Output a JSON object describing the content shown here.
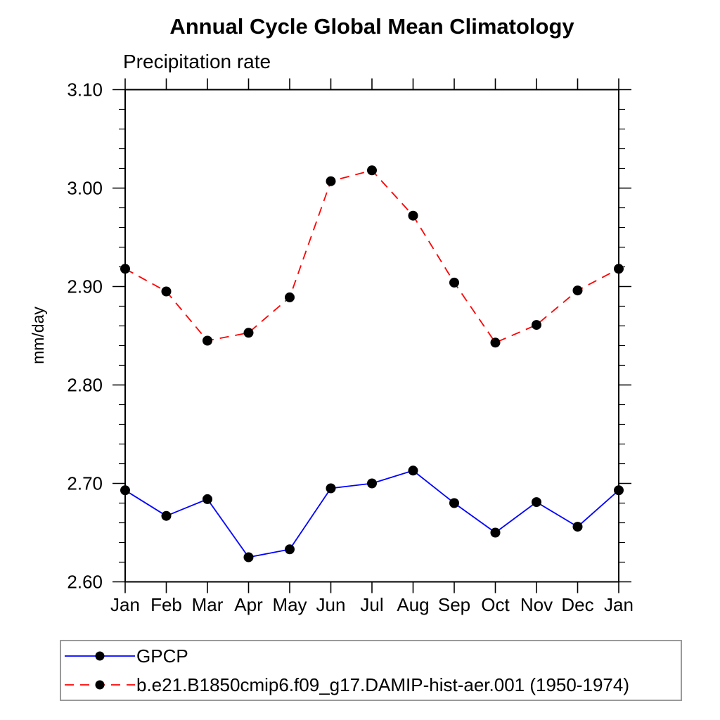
{
  "page": {
    "background": "#ffffff",
    "axis_color": "#000000",
    "legend_border_color": "#9a9a9a"
  },
  "chart_data": {
    "type": "line",
    "title": "Annual Cycle Global Mean Climatology",
    "subtitle": "Precipitation rate",
    "ylabel": "mm/day",
    "xlabel": "",
    "categories": [
      "Jan",
      "Feb",
      "Mar",
      "Apr",
      "May",
      "Jun",
      "Jul",
      "Aug",
      "Sep",
      "Oct",
      "Nov",
      "Dec",
      "Jan"
    ],
    "ylim": [
      2.6,
      3.1
    ],
    "ytick_labels": [
      "2.60",
      "2.70",
      "2.80",
      "2.90",
      "3.00",
      "3.10"
    ],
    "ytick_major_step": 0.1,
    "ytick_minor_step": 0.02,
    "grid": false,
    "legend_position": "bottom-left",
    "series": [
      {
        "name": "GPCP",
        "line_color": "#0000ff",
        "line_style": "solid",
        "marker": "filled-circle",
        "marker_color": "#000000",
        "values": [
          2.693,
          2.667,
          2.684,
          2.625,
          2.633,
          2.695,
          2.7,
          2.713,
          2.68,
          2.65,
          2.681,
          2.656,
          2.693
        ]
      },
      {
        "name": "b.e21.B1850cmip6.f09_g17.DAMIP-hist-aer.001 (1950-1974)",
        "line_color": "#ff0000",
        "line_style": "dashed",
        "marker": "filled-circle",
        "marker_color": "#000000",
        "values": [
          2.918,
          2.895,
          2.845,
          2.853,
          2.889,
          3.007,
          3.018,
          2.972,
          2.904,
          2.843,
          2.861,
          2.896,
          2.918
        ]
      }
    ]
  }
}
